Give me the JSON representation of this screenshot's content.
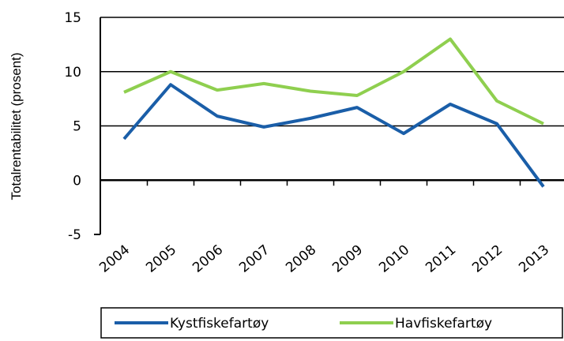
{
  "chart_data": {
    "type": "line",
    "y_label": "Totalrentabilitet (prosent)",
    "categories": [
      "2004",
      "2005",
      "2006",
      "2007",
      "2008",
      "2009",
      "2010",
      "2011",
      "2012",
      "2013"
    ],
    "series": [
      {
        "name": "Kystfiskefartøy",
        "color": "#1a5ea8",
        "values": [
          3.8,
          8.8,
          5.9,
          4.9,
          5.7,
          6.7,
          4.3,
          7.0,
          5.2,
          -0.6
        ]
      },
      {
        "name": "Havfiskefartøy",
        "color": "#8fcf4f",
        "values": [
          8.1,
          10.0,
          8.3,
          8.9,
          8.2,
          7.8,
          10.0,
          13.0,
          7.3,
          5.2
        ]
      }
    ],
    "ylim": [
      -5,
      15
    ],
    "yticks": [
      -5,
      0,
      5,
      10,
      15
    ],
    "grid": true
  }
}
